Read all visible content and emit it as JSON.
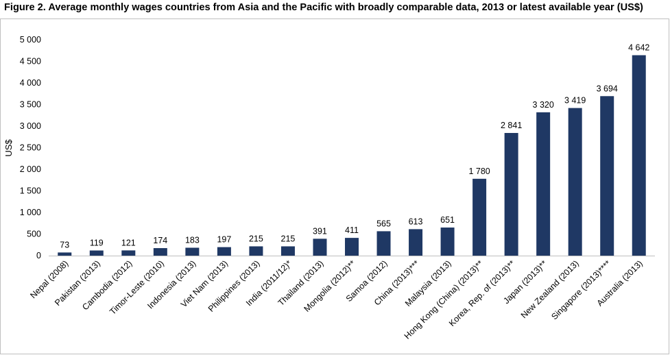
{
  "chart_data": {
    "type": "bar",
    "title": "Figure 2. Average monthly wages countries from Asia and the Pacific with broadly comparable data, 2013 or latest available year (US$)",
    "ylabel": "US$",
    "xlabel": "",
    "ylim": [
      0,
      5000
    ],
    "yticks": [
      0,
      500,
      1000,
      1500,
      2000,
      2500,
      3000,
      3500,
      4000,
      4500,
      5000
    ],
    "ytick_labels": [
      "0",
      "500",
      "1 000",
      "1 500",
      "2 000",
      "2 500",
      "3 000",
      "3 500",
      "4 000",
      "4 500",
      "5 000"
    ],
    "grid": false,
    "legend": "none",
    "categories": [
      "Nepal (2008)",
      "Pakistan (2013)",
      "Cambodia (2012)",
      "Timor-Leste (2010)",
      "Indonesia (2013)",
      "Viet Nam (2013)",
      "Philippines (2013)",
      "India (2011/12)*",
      "Thailand (2013)",
      "Mongolia (2012)**",
      "Samoa (2012)",
      "China (2013)***",
      "Malaysia (2013)",
      "Hong Kong (China) (2013)**",
      "Korea, Rep. of (2013)**",
      "Japan (2013)**",
      "New Zealand (2013)",
      "Singapore (2013)****",
      "Australia (2013)"
    ],
    "values": [
      73,
      119,
      121,
      174,
      183,
      197,
      215,
      215,
      391,
      411,
      565,
      613,
      651,
      1780,
      2841,
      3320,
      3419,
      3694,
      4642
    ],
    "value_labels": [
      "73",
      "119",
      "121",
      "174",
      "183",
      "197",
      "215",
      "215",
      "391",
      "411",
      "565",
      "613",
      "651",
      "1 780",
      "2 841",
      "3 320",
      "3 419",
      "3 694",
      "4 642"
    ],
    "bar_color": "#1f3864"
  }
}
